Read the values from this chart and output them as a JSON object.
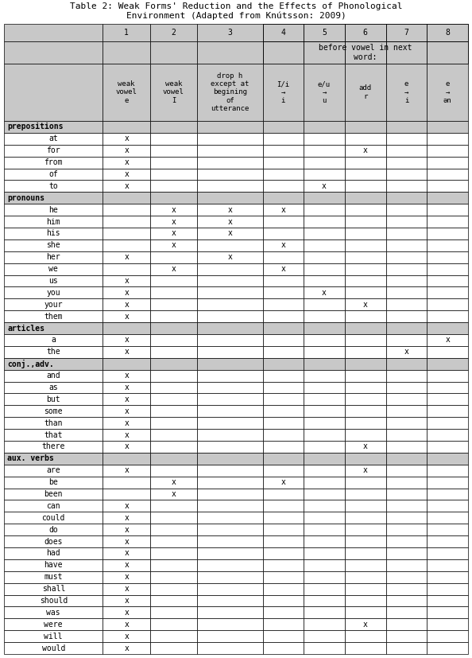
{
  "title": "Table 2: Weak Forms' Reduction and the Effects of Phonological\nEnvironment (Adapted from Knútsson: 2009)",
  "col_subheaders": [
    "",
    "weak\nvowel\ne",
    "weak\nvowel\nI",
    "drop h\nexcept at\nbegining\nof\nutterance",
    "I/i\n→\ni",
    "e/u\n→\nu",
    "add\nr",
    "e\n→\ni",
    "e\n→\nən"
  ],
  "category_rows": [
    {
      "label": "prepositions",
      "is_category": true,
      "cols": [
        "",
        "",
        "",
        "",
        "",
        "",
        "",
        ""
      ]
    },
    {
      "label": "at",
      "is_category": false,
      "cols": [
        "x",
        "",
        "",
        "",
        "",
        "",
        "",
        ""
      ]
    },
    {
      "label": "for",
      "is_category": false,
      "cols": [
        "x",
        "",
        "",
        "",
        "",
        "x",
        "",
        ""
      ]
    },
    {
      "label": "from",
      "is_category": false,
      "cols": [
        "x",
        "",
        "",
        "",
        "",
        "",
        "",
        ""
      ]
    },
    {
      "label": "of",
      "is_category": false,
      "cols": [
        "x",
        "",
        "",
        "",
        "",
        "",
        "",
        ""
      ]
    },
    {
      "label": "to",
      "is_category": false,
      "cols": [
        "x",
        "",
        "",
        "",
        "x",
        "",
        "",
        ""
      ]
    },
    {
      "label": "pronouns",
      "is_category": true,
      "cols": [
        "",
        "",
        "",
        "",
        "",
        "",
        "",
        ""
      ]
    },
    {
      "label": "he",
      "is_category": false,
      "cols": [
        "",
        "x",
        "x",
        "x",
        "",
        "",
        "",
        ""
      ]
    },
    {
      "label": "him",
      "is_category": false,
      "cols": [
        "",
        "x",
        "x",
        "",
        "",
        "",
        "",
        ""
      ]
    },
    {
      "label": "his",
      "is_category": false,
      "cols": [
        "",
        "x",
        "x",
        "",
        "",
        "",
        "",
        ""
      ]
    },
    {
      "label": "she",
      "is_category": false,
      "cols": [
        "",
        "x",
        "",
        "x",
        "",
        "",
        "",
        ""
      ]
    },
    {
      "label": "her",
      "is_category": false,
      "cols": [
        "x",
        "",
        "x",
        "",
        "",
        "",
        "",
        ""
      ]
    },
    {
      "label": "we",
      "is_category": false,
      "cols": [
        "",
        "x",
        "",
        "x",
        "",
        "",
        "",
        ""
      ]
    },
    {
      "label": "us",
      "is_category": false,
      "cols": [
        "x",
        "",
        "",
        "",
        "",
        "",
        "",
        ""
      ]
    },
    {
      "label": "you",
      "is_category": false,
      "cols": [
        "x",
        "",
        "",
        "",
        "x",
        "",
        "",
        ""
      ]
    },
    {
      "label": "your",
      "is_category": false,
      "cols": [
        "x",
        "",
        "",
        "",
        "",
        "x",
        "",
        ""
      ]
    },
    {
      "label": "them",
      "is_category": false,
      "cols": [
        "x",
        "",
        "",
        "",
        "",
        "",
        "",
        ""
      ]
    },
    {
      "label": "articles",
      "is_category": true,
      "cols": [
        "",
        "",
        "",
        "",
        "",
        "",
        "",
        ""
      ]
    },
    {
      "label": "a",
      "is_category": false,
      "cols": [
        "x",
        "",
        "",
        "",
        "",
        "",
        "",
        "x"
      ]
    },
    {
      "label": "the",
      "is_category": false,
      "cols": [
        "x",
        "",
        "",
        "",
        "",
        "",
        "x",
        ""
      ]
    },
    {
      "label": "conj.,adv.",
      "is_category": true,
      "cols": [
        "",
        "",
        "",
        "",
        "",
        "",
        "",
        ""
      ]
    },
    {
      "label": "and",
      "is_category": false,
      "cols": [
        "x",
        "",
        "",
        "",
        "",
        "",
        "",
        ""
      ]
    },
    {
      "label": "as",
      "is_category": false,
      "cols": [
        "x",
        "",
        "",
        "",
        "",
        "",
        "",
        ""
      ]
    },
    {
      "label": "but",
      "is_category": false,
      "cols": [
        "x",
        "",
        "",
        "",
        "",
        "",
        "",
        ""
      ]
    },
    {
      "label": "some",
      "is_category": false,
      "cols": [
        "x",
        "",
        "",
        "",
        "",
        "",
        "",
        ""
      ]
    },
    {
      "label": "than",
      "is_category": false,
      "cols": [
        "x",
        "",
        "",
        "",
        "",
        "",
        "",
        ""
      ]
    },
    {
      "label": "that",
      "is_category": false,
      "cols": [
        "x",
        "",
        "",
        "",
        "",
        "",
        "",
        ""
      ]
    },
    {
      "label": "there",
      "is_category": false,
      "cols": [
        "x",
        "",
        "",
        "",
        "",
        "x",
        "",
        ""
      ]
    },
    {
      "label": "aux. verbs",
      "is_category": true,
      "cols": [
        "",
        "",
        "",
        "",
        "",
        "",
        "",
        ""
      ]
    },
    {
      "label": "are",
      "is_category": false,
      "cols": [
        "x",
        "",
        "",
        "",
        "",
        "x",
        "",
        ""
      ]
    },
    {
      "label": "be",
      "is_category": false,
      "cols": [
        "",
        "x",
        "",
        "x",
        "",
        "",
        "",
        ""
      ]
    },
    {
      "label": "been",
      "is_category": false,
      "cols": [
        "",
        "x",
        "",
        "",
        "",
        "",
        "",
        ""
      ]
    },
    {
      "label": "can",
      "is_category": false,
      "cols": [
        "x",
        "",
        "",
        "",
        "",
        "",
        "",
        ""
      ]
    },
    {
      "label": "could",
      "is_category": false,
      "cols": [
        "x",
        "",
        "",
        "",
        "",
        "",
        "",
        ""
      ]
    },
    {
      "label": "do",
      "is_category": false,
      "cols": [
        "x",
        "",
        "",
        "",
        "",
        "",
        "",
        ""
      ]
    },
    {
      "label": "does",
      "is_category": false,
      "cols": [
        "x",
        "",
        "",
        "",
        "",
        "",
        "",
        ""
      ]
    },
    {
      "label": "had",
      "is_category": false,
      "cols": [
        "x",
        "",
        "",
        "",
        "",
        "",
        "",
        ""
      ]
    },
    {
      "label": "have",
      "is_category": false,
      "cols": [
        "x",
        "",
        "",
        "",
        "",
        "",
        "",
        ""
      ]
    },
    {
      "label": "must",
      "is_category": false,
      "cols": [
        "x",
        "",
        "",
        "",
        "",
        "",
        "",
        ""
      ]
    },
    {
      "label": "shall",
      "is_category": false,
      "cols": [
        "x",
        "",
        "",
        "",
        "",
        "",
        "",
        ""
      ]
    },
    {
      "label": "should",
      "is_category": false,
      "cols": [
        "x",
        "",
        "",
        "",
        "",
        "",
        "",
        ""
      ]
    },
    {
      "label": "was",
      "is_category": false,
      "cols": [
        "x",
        "",
        "",
        "",
        "",
        "",
        "",
        ""
      ]
    },
    {
      "label": "were",
      "is_category": false,
      "cols": [
        "x",
        "",
        "",
        "",
        "",
        "x",
        "",
        ""
      ]
    },
    {
      "label": "will",
      "is_category": false,
      "cols": [
        "x",
        "",
        "",
        "",
        "",
        "",
        "",
        ""
      ]
    },
    {
      "label": "would",
      "is_category": false,
      "cols": [
        "x",
        "",
        "",
        "",
        "",
        "",
        "",
        ""
      ]
    }
  ],
  "header_bg": "#c8c8c8",
  "category_bg": "#c8c8c8",
  "row_bg": "#ffffff",
  "grid_color": "#000000",
  "font_size": 7.0,
  "title_font_size": 8.0
}
